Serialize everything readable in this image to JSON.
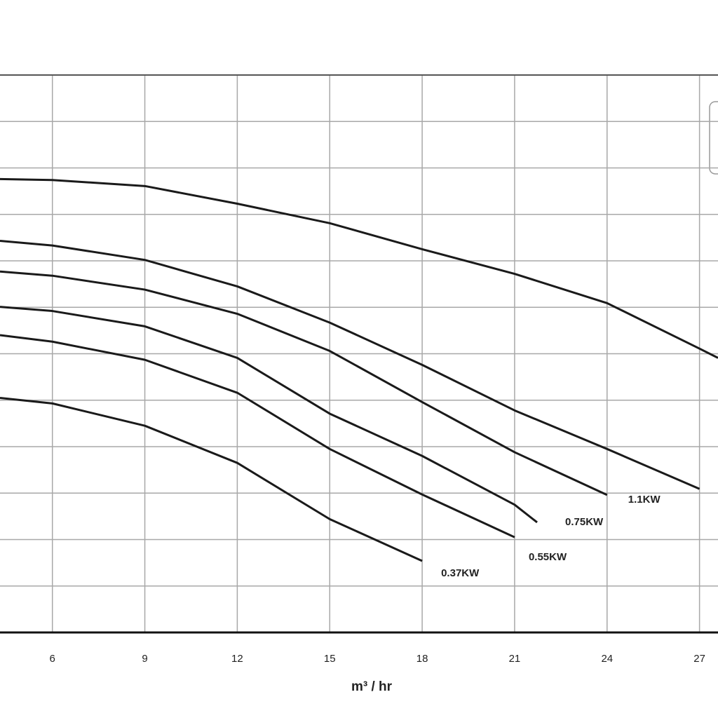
{
  "chart_data": {
    "type": "line",
    "x_label": "m³ / hr",
    "xlim": [
      4.3,
      27.6
    ],
    "xticks": [
      6,
      9,
      12,
      15,
      18,
      21,
      24,
      27
    ],
    "ylim": [
      0,
      12
    ],
    "yticks": [
      0,
      1,
      2,
      3,
      4,
      5,
      6,
      7,
      8,
      9,
      10,
      11,
      12
    ],
    "ytick_labels": false,
    "grid": true,
    "series": [
      {
        "name": null,
        "color": "#1a1a1a",
        "x": [
          4.3,
          6,
          9,
          12,
          15,
          18,
          21,
          24,
          27,
          27.6
        ],
        "values": [
          9.76,
          9.74,
          9.61,
          9.23,
          8.81,
          8.25,
          7.72,
          7.09,
          6.11,
          5.91
        ]
      },
      {
        "name": null,
        "color": "#1a1a1a",
        "x": [
          4.3,
          6,
          9,
          12,
          15,
          18,
          21,
          24,
          27
        ],
        "values": [
          8.43,
          8.33,
          8.02,
          7.45,
          6.67,
          5.76,
          4.78,
          3.95,
          3.09
        ]
      },
      {
        "name": "1.1KW",
        "color": "#1a1a1a",
        "x": [
          4.3,
          6,
          9,
          12,
          15,
          18,
          21,
          24
        ],
        "values": [
          7.77,
          7.68,
          7.38,
          6.86,
          6.06,
          4.96,
          3.88,
          2.96
        ]
      },
      {
        "name": "0.75KW",
        "color": "#1a1a1a",
        "x": [
          4.3,
          6,
          9,
          12,
          15,
          18,
          21,
          21.73
        ],
        "values": [
          7.01,
          6.92,
          6.59,
          5.91,
          4.71,
          3.8,
          2.75,
          2.37
        ]
      },
      {
        "name": "0.55KW",
        "color": "#1a1a1a",
        "x": [
          4.3,
          6,
          9,
          12,
          15,
          18,
          21
        ],
        "values": [
          6.4,
          6.26,
          5.87,
          5.16,
          3.95,
          2.97,
          2.05
        ]
      },
      {
        "name": "0.37KW",
        "color": "#1a1a1a",
        "x": [
          4.3,
          6,
          9,
          12,
          15,
          18
        ],
        "values": [
          5.05,
          4.93,
          4.45,
          3.65,
          2.44,
          1.54
        ]
      }
    ]
  }
}
